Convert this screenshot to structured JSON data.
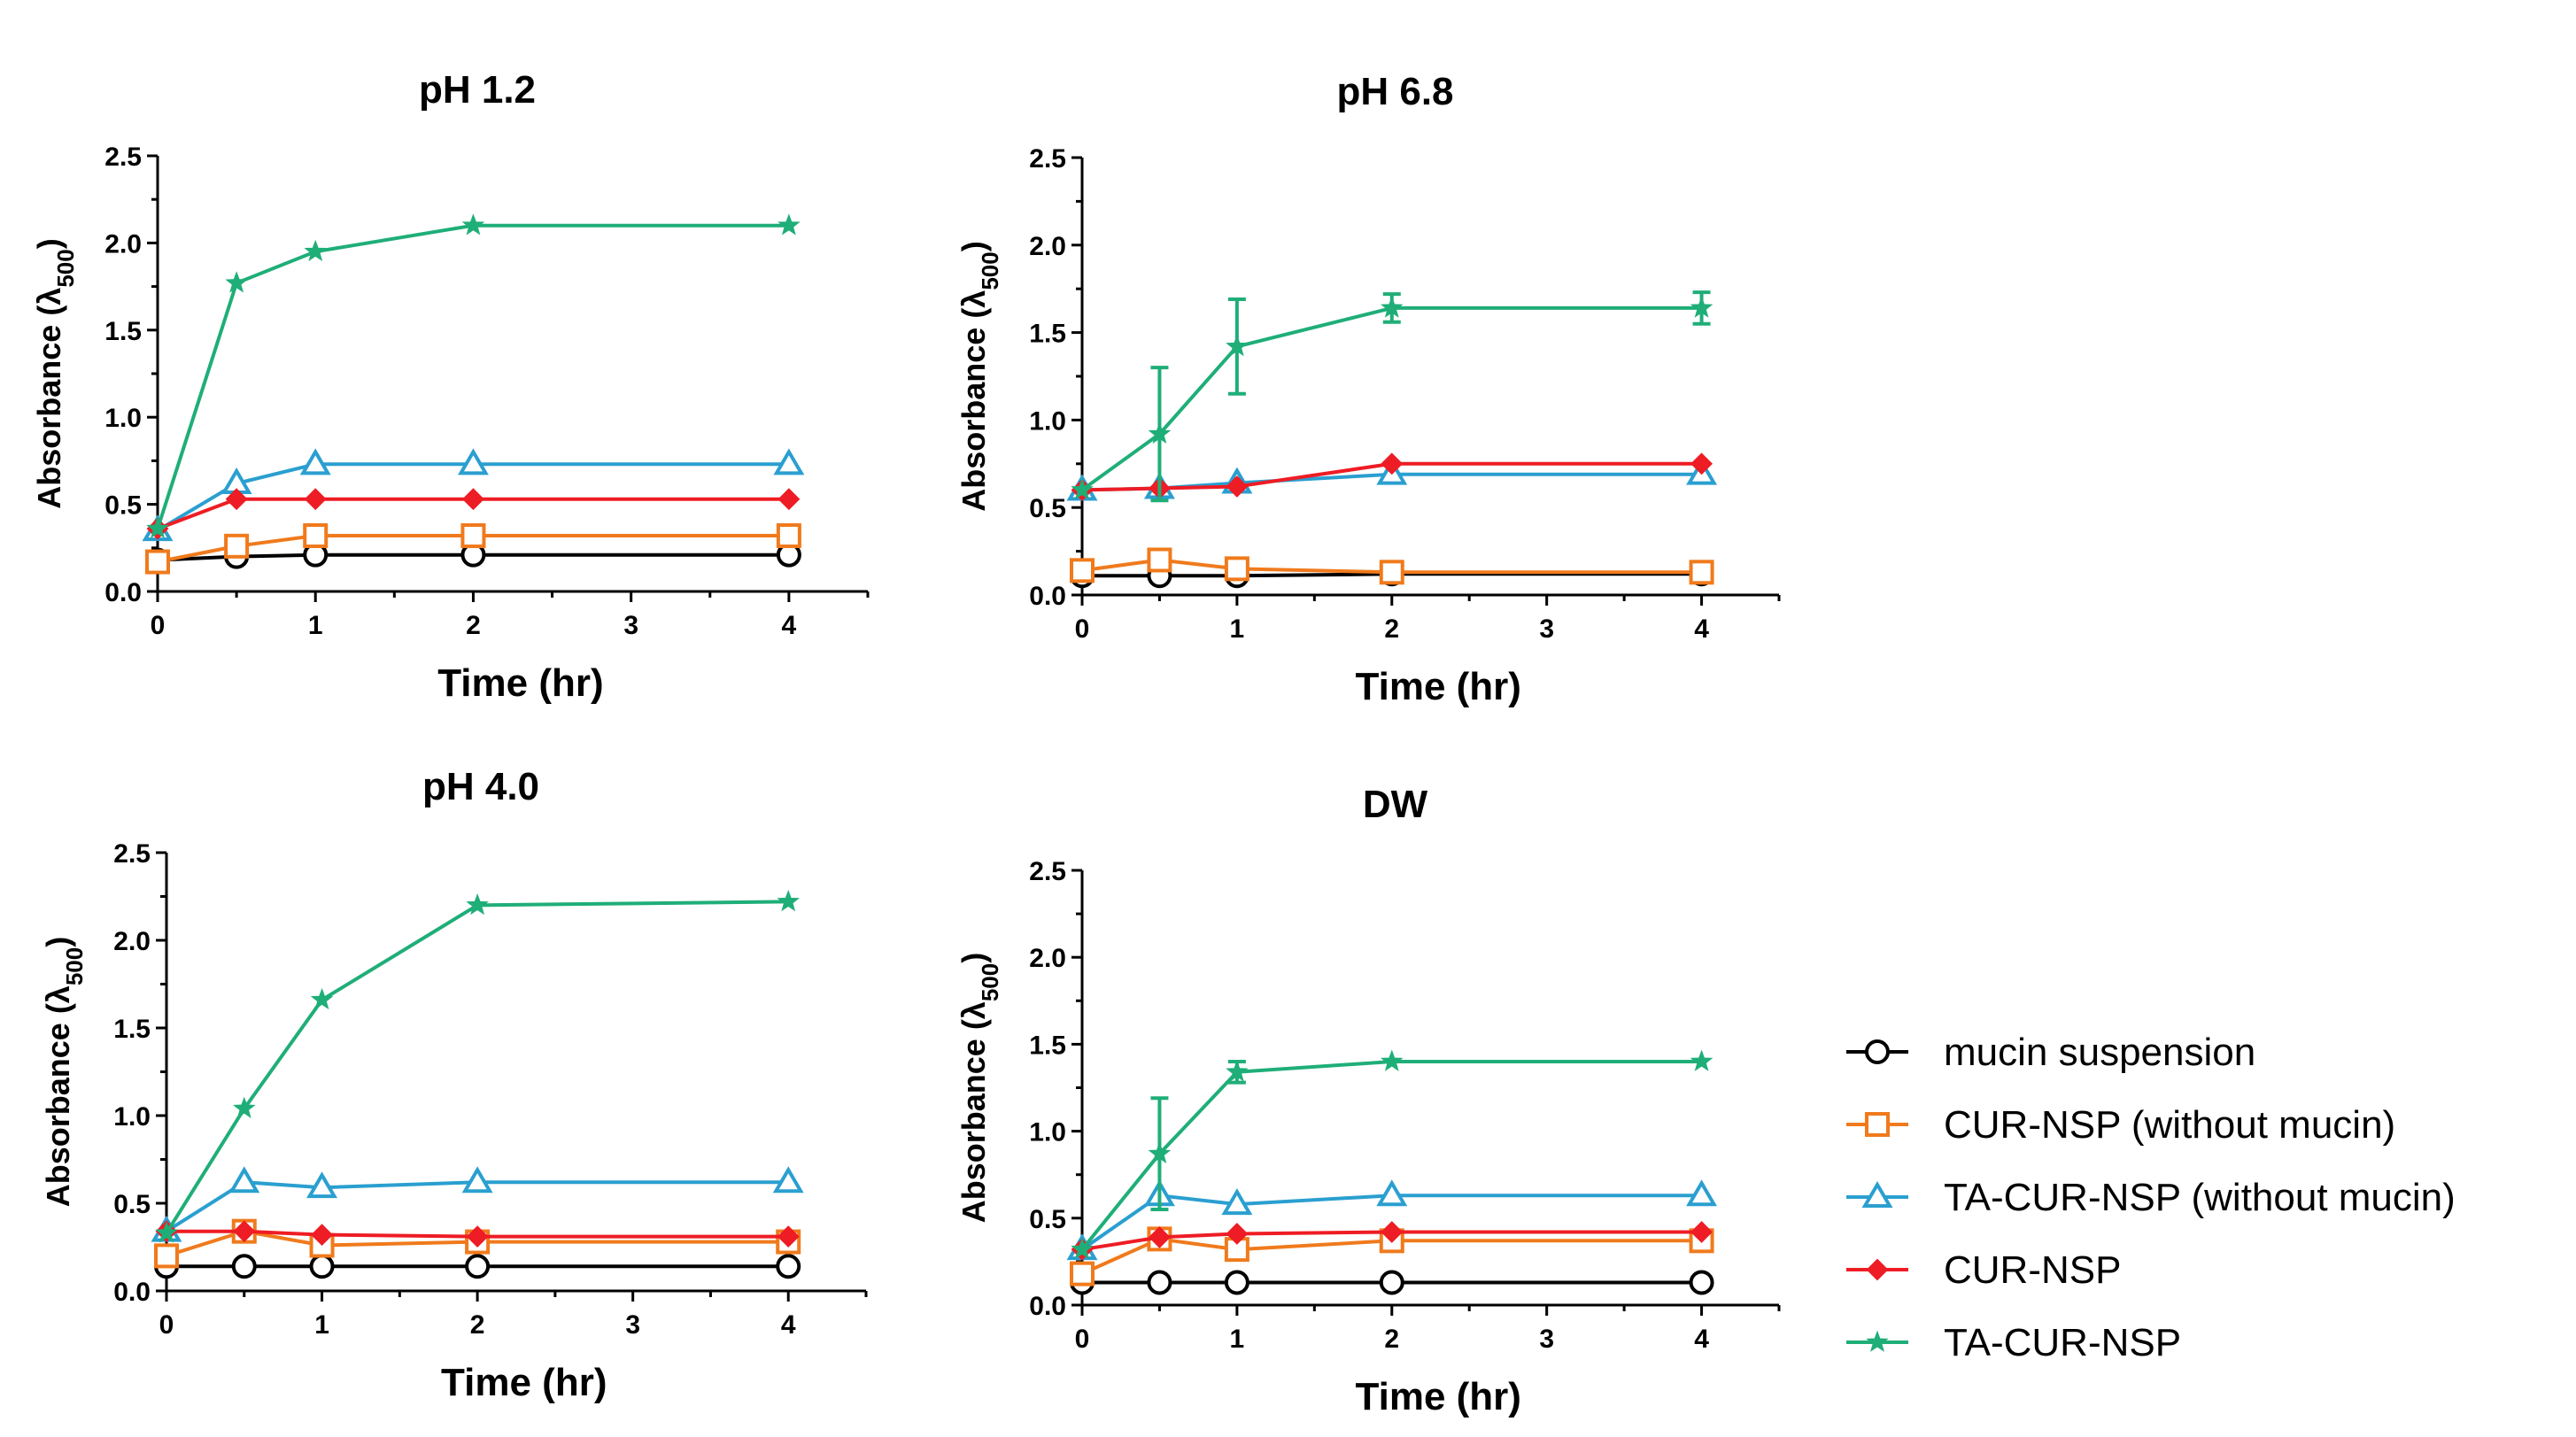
{
  "chart_data": [
    {
      "type": "line",
      "title": "pH 1.2",
      "xlabel": "Time (hr)",
      "ylabel": "Absorbance (λ",
      "ylabel_sub": "500",
      "ylabel_close": ")",
      "xlim": [
        0,
        4.5
      ],
      "ylim": [
        0,
        2.5
      ],
      "xticks": [
        0,
        1,
        2,
        3,
        4
      ],
      "yticks": [
        0.0,
        0.5,
        1.0,
        1.5,
        2.0,
        2.5
      ],
      "xtick_labels": [
        "0",
        "1",
        "2",
        "3",
        "4"
      ],
      "ytick_labels": [
        "0.0",
        "0.5",
        "1.0",
        "1.5",
        "2.0",
        "2.5"
      ],
      "x": [
        0,
        0.5,
        1,
        2,
        4
      ],
      "series": [
        {
          "name": "mucin suspension",
          "values": [
            0.18,
            0.2,
            0.21,
            0.21,
            0.21
          ],
          "errors": [
            0,
            0,
            0,
            0,
            0
          ]
        },
        {
          "name": "CUR-NSP (without mucin)",
          "values": [
            0.17,
            0.26,
            0.32,
            0.32,
            0.32
          ],
          "errors": [
            0,
            0,
            0,
            0,
            0
          ]
        },
        {
          "name": "TA-CUR-NSP (without mucin)",
          "values": [
            0.35,
            0.62,
            0.73,
            0.73,
            0.73
          ],
          "errors": [
            0,
            0,
            0,
            0,
            0
          ]
        },
        {
          "name": "CUR-NSP",
          "values": [
            0.36,
            0.53,
            0.53,
            0.53,
            0.53
          ],
          "errors": [
            0,
            0,
            0,
            0,
            0
          ]
        },
        {
          "name": "TA-CUR-NSP",
          "values": [
            0.36,
            1.77,
            1.95,
            2.1,
            2.1
          ],
          "errors": [
            0,
            0,
            0,
            0,
            0
          ]
        }
      ]
    },
    {
      "type": "line",
      "title": "pH 6.8",
      "xlabel": "Time (hr)",
      "ylabel": "Absorbance (λ",
      "ylabel_sub": "500",
      "ylabel_close": ")",
      "xlim": [
        0,
        4.5
      ],
      "ylim": [
        0,
        2.5
      ],
      "xticks": [
        0,
        1,
        2,
        3,
        4
      ],
      "yticks": [
        0.0,
        0.5,
        1.0,
        1.5,
        2.0,
        2.5
      ],
      "xtick_labels": [
        "0",
        "1",
        "2",
        "3",
        "4"
      ],
      "ytick_labels": [
        "0.0",
        "0.5",
        "1.0",
        "1.5",
        "2.0",
        "2.5"
      ],
      "x": [
        0,
        0.5,
        1,
        2,
        4
      ],
      "series": [
        {
          "name": "mucin suspension",
          "values": [
            0.11,
            0.11,
            0.11,
            0.12,
            0.12
          ],
          "errors": [
            0,
            0,
            0,
            0,
            0
          ]
        },
        {
          "name": "CUR-NSP (without mucin)",
          "values": [
            0.14,
            0.2,
            0.15,
            0.13,
            0.13
          ],
          "errors": [
            0,
            0,
            0,
            0,
            0
          ]
        },
        {
          "name": "TA-CUR-NSP (without mucin)",
          "values": [
            0.6,
            0.61,
            0.64,
            0.69,
            0.69
          ],
          "errors": [
            0,
            0,
            0,
            0,
            0
          ]
        },
        {
          "name": "CUR-NSP",
          "values": [
            0.6,
            0.61,
            0.62,
            0.75,
            0.75
          ],
          "errors": [
            0,
            0,
            0,
            0,
            0
          ]
        },
        {
          "name": "TA-CUR-NSP",
          "values": [
            0.6,
            0.92,
            1.42,
            1.64,
            1.64
          ],
          "errors": [
            0,
            0.38,
            0.27,
            0.08,
            0.09
          ]
        }
      ]
    },
    {
      "type": "line",
      "title": "pH 4.0",
      "xlabel": "Time (hr)",
      "ylabel": "Absorbance (λ",
      "ylabel_sub": "500",
      "ylabel_close": ")",
      "xlim": [
        0,
        4.5
      ],
      "ylim": [
        0,
        2.5
      ],
      "xticks": [
        0,
        1,
        2,
        3,
        4
      ],
      "yticks": [
        0.0,
        0.5,
        1.0,
        1.5,
        2.0,
        2.5
      ],
      "xtick_labels": [
        "0",
        "1",
        "2",
        "3",
        "4"
      ],
      "ytick_labels": [
        "0.0",
        "0.5",
        "1.0",
        "1.5",
        "2.0",
        "2.5"
      ],
      "x": [
        0,
        0.5,
        1,
        2,
        4
      ],
      "series": [
        {
          "name": "mucin suspension",
          "values": [
            0.14,
            0.14,
            0.14,
            0.14,
            0.14
          ],
          "errors": [
            0,
            0,
            0,
            0,
            0
          ]
        },
        {
          "name": "CUR-NSP (without mucin)",
          "values": [
            0.2,
            0.34,
            0.26,
            0.28,
            0.28
          ],
          "errors": [
            0,
            0,
            0,
            0,
            0
          ]
        },
        {
          "name": "TA-CUR-NSP (without mucin)",
          "values": [
            0.34,
            0.62,
            0.59,
            0.62,
            0.62
          ],
          "errors": [
            0,
            0,
            0,
            0,
            0
          ]
        },
        {
          "name": "CUR-NSP",
          "values": [
            0.34,
            0.34,
            0.32,
            0.31,
            0.31
          ],
          "errors": [
            0,
            0,
            0,
            0,
            0
          ]
        },
        {
          "name": "TA-CUR-NSP",
          "values": [
            0.33,
            1.04,
            1.66,
            2.2,
            2.22
          ],
          "errors": [
            0,
            0,
            0,
            0,
            0
          ]
        }
      ]
    },
    {
      "type": "line",
      "title": "DW",
      "xlabel": "Time (hr)",
      "ylabel": "Absorbance (λ",
      "ylabel_sub": "500",
      "ylabel_close": ")",
      "xlim": [
        0,
        4.5
      ],
      "ylim": [
        0,
        2.5
      ],
      "xticks": [
        0,
        1,
        2,
        3,
        4
      ],
      "yticks": [
        0.0,
        0.5,
        1.0,
        1.5,
        2.0,
        2.5
      ],
      "xtick_labels": [
        "0",
        "1",
        "2",
        "3",
        "4"
      ],
      "ytick_labels": [
        "0.0",
        "0.5",
        "1.0",
        "1.5",
        "2.0",
        "2.5"
      ],
      "x": [
        0,
        0.5,
        1,
        2,
        4
      ],
      "series": [
        {
          "name": "mucin suspension",
          "values": [
            0.13,
            0.13,
            0.13,
            0.13,
            0.13
          ],
          "errors": [
            0,
            0,
            0,
            0,
            0
          ]
        },
        {
          "name": "CUR-NSP (without mucin)",
          "values": [
            0.18,
            0.38,
            0.32,
            0.37,
            0.37
          ],
          "errors": [
            0,
            0,
            0,
            0,
            0
          ]
        },
        {
          "name": "TA-CUR-NSP (without mucin)",
          "values": [
            0.32,
            0.63,
            0.58,
            0.63,
            0.63
          ],
          "errors": [
            0,
            0,
            0,
            0,
            0
          ]
        },
        {
          "name": "CUR-NSP",
          "values": [
            0.32,
            0.39,
            0.41,
            0.42,
            0.42
          ],
          "errors": [
            0,
            0,
            0,
            0,
            0
          ]
        },
        {
          "name": "TA-CUR-NSP",
          "values": [
            0.32,
            0.87,
            1.34,
            1.4,
            1.4
          ],
          "errors": [
            0,
            0.32,
            0.06,
            0,
            0
          ]
        }
      ]
    }
  ],
  "legend": {
    "placement": "right",
    "entries": [
      {
        "label": "mucin suspension",
        "color": "#000000",
        "marker": "circle-open"
      },
      {
        "label": "CUR-NSP (without mucin)",
        "color": "#f07a1c",
        "marker": "square-open"
      },
      {
        "label": "TA-CUR-NSP (without mucin)",
        "color": "#2a9fd0",
        "marker": "triangle-open"
      },
      {
        "label": "CUR-NSP",
        "color": "#ee1c24",
        "marker": "diamond-filled"
      },
      {
        "label": "TA-CUR-NSP",
        "color": "#1fae78",
        "marker": "star-filled"
      }
    ]
  }
}
